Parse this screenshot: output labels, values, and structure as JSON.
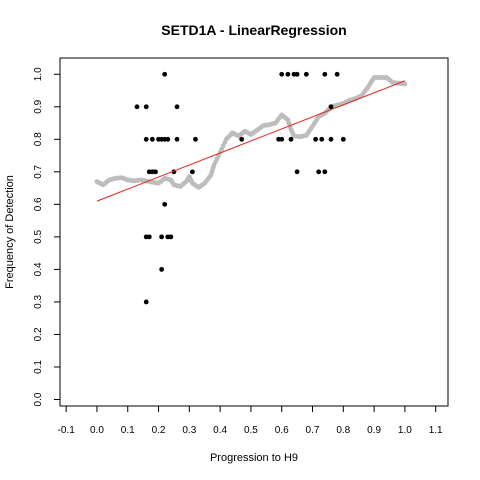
{
  "chart_data": {
    "type": "scatter",
    "title": "SETD1A - LinearRegression",
    "xlabel": "Progression to H9",
    "ylabel": "Frequency of Detection",
    "xlim": [
      -0.12,
      1.14
    ],
    "ylim": [
      -0.02,
      1.05
    ],
    "x_ticks": [
      "-0.1",
      "0.0",
      "0.1",
      "0.2",
      "0.3",
      "0.4",
      "0.5",
      "0.6",
      "0.7",
      "0.8",
      "0.9",
      "1.0",
      "1.1"
    ],
    "y_ticks": [
      "0.0",
      "0.1",
      "0.2",
      "0.3",
      "0.4",
      "0.5",
      "0.6",
      "0.7",
      "0.8",
      "0.9",
      "1.0"
    ],
    "grid": false,
    "colors": {
      "points": "#000000",
      "smooth": "#bdbdbd",
      "fit": "#e8251c"
    },
    "points": [
      [
        0.13,
        0.9
      ],
      [
        0.16,
        0.9
      ],
      [
        0.16,
        0.8
      ],
      [
        0.16,
        0.5
      ],
      [
        0.17,
        0.5
      ],
      [
        0.17,
        0.7
      ],
      [
        0.18,
        0.7
      ],
      [
        0.18,
        0.8
      ],
      [
        0.19,
        0.7
      ],
      [
        0.2,
        0.8
      ],
      [
        0.21,
        0.8
      ],
      [
        0.21,
        0.5
      ],
      [
        0.22,
        1.0
      ],
      [
        0.22,
        0.8
      ],
      [
        0.22,
        0.6
      ],
      [
        0.23,
        0.8
      ],
      [
        0.23,
        0.5
      ],
      [
        0.24,
        0.5
      ],
      [
        0.25,
        0.7
      ],
      [
        0.26,
        0.9
      ],
      [
        0.26,
        0.8
      ],
      [
        0.21,
        0.4
      ],
      [
        0.16,
        0.3
      ],
      [
        0.31,
        0.7
      ],
      [
        0.32,
        0.8
      ],
      [
        0.47,
        0.8
      ],
      [
        0.59,
        0.8
      ],
      [
        0.6,
        0.8
      ],
      [
        0.6,
        1.0
      ],
      [
        0.62,
        1.0
      ],
      [
        0.64,
        1.0
      ],
      [
        0.65,
        1.0
      ],
      [
        0.65,
        0.7
      ],
      [
        0.68,
        1.0
      ],
      [
        0.72,
        0.7
      ],
      [
        0.73,
        0.8
      ],
      [
        0.74,
        0.7
      ],
      [
        0.74,
        1.0
      ],
      [
        0.76,
        0.8
      ],
      [
        0.76,
        0.9
      ],
      [
        0.78,
        1.0
      ],
      [
        0.8,
        0.8
      ],
      [
        0.71,
        0.8
      ],
      [
        0.63,
        0.8
      ]
    ],
    "smooth": [
      [
        0.0,
        0.67
      ],
      [
        0.02,
        0.66
      ],
      [
        0.04,
        0.675
      ],
      [
        0.06,
        0.68
      ],
      [
        0.08,
        0.682
      ],
      [
        0.1,
        0.675
      ],
      [
        0.12,
        0.672
      ],
      [
        0.14,
        0.675
      ],
      [
        0.16,
        0.672
      ],
      [
        0.18,
        0.668
      ],
      [
        0.2,
        0.665
      ],
      [
        0.22,
        0.68
      ],
      [
        0.24,
        0.675
      ],
      [
        0.25,
        0.66
      ],
      [
        0.27,
        0.655
      ],
      [
        0.29,
        0.67
      ],
      [
        0.3,
        0.685
      ],
      [
        0.31,
        0.665
      ],
      [
        0.33,
        0.652
      ],
      [
        0.35,
        0.665
      ],
      [
        0.37,
        0.69
      ],
      [
        0.38,
        0.72
      ],
      [
        0.4,
        0.76
      ],
      [
        0.42,
        0.8
      ],
      [
        0.44,
        0.82
      ],
      [
        0.46,
        0.81
      ],
      [
        0.48,
        0.825
      ],
      [
        0.5,
        0.815
      ],
      [
        0.52,
        0.828
      ],
      [
        0.54,
        0.842
      ],
      [
        0.56,
        0.845
      ],
      [
        0.58,
        0.85
      ],
      [
        0.6,
        0.875
      ],
      [
        0.62,
        0.86
      ],
      [
        0.63,
        0.83
      ],
      [
        0.64,
        0.81
      ],
      [
        0.66,
        0.808
      ],
      [
        0.68,
        0.812
      ],
      [
        0.7,
        0.84
      ],
      [
        0.72,
        0.87
      ],
      [
        0.74,
        0.88
      ],
      [
        0.76,
        0.9
      ],
      [
        0.78,
        0.905
      ],
      [
        0.8,
        0.91
      ],
      [
        0.82,
        0.92
      ],
      [
        0.84,
        0.925
      ],
      [
        0.86,
        0.935
      ],
      [
        0.88,
        0.96
      ],
      [
        0.9,
        0.99
      ],
      [
        0.92,
        0.99
      ],
      [
        0.94,
        0.99
      ],
      [
        0.96,
        0.975
      ],
      [
        0.98,
        0.972
      ],
      [
        1.0,
        0.97
      ]
    ],
    "fit_line": [
      [
        0.0,
        0.61
      ],
      [
        1.0,
        0.98
      ]
    ]
  }
}
